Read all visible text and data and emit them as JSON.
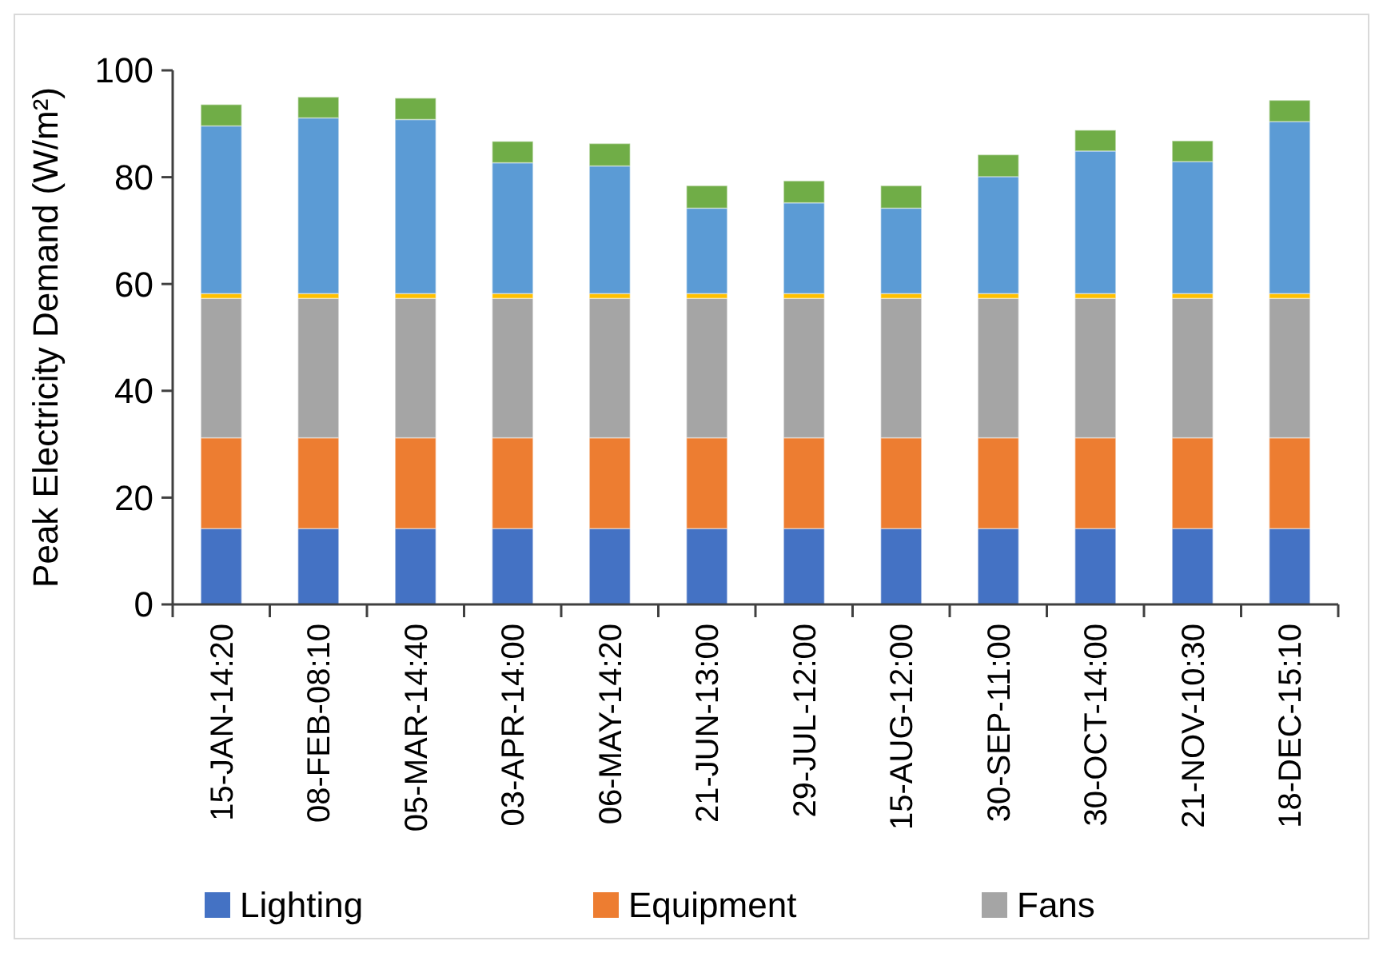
{
  "chart_data": {
    "type": "bar",
    "stacked": true,
    "ylabel": "Peak Electricity Demand (W/m²)",
    "categories": [
      "15-JAN-14:20",
      "08-FEB-08:10",
      "05-MAR-14:40",
      "03-APR-14:00",
      "06-MAY-14:20",
      "21-JUN-13:00",
      "29-JUL-12:00",
      "15-AUG-12:00",
      "30-SEP-11:00",
      "30-OCT-14:00",
      "21-NOV-10:30",
      "18-DEC-15:10"
    ],
    "series": [
      {
        "name": "Lighting",
        "color": "#4472c4",
        "values": [
          14.2,
          14.2,
          14.2,
          14.2,
          14.2,
          14.2,
          14.2,
          14.2,
          14.2,
          14.2,
          14.2,
          14.2
        ]
      },
      {
        "name": "Equipment",
        "color": "#ed7d31",
        "values": [
          17,
          17,
          17,
          17,
          17,
          17,
          17,
          17,
          17,
          17,
          17,
          17
        ]
      },
      {
        "name": "Fans",
        "color": "#a5a5a5",
        "values": [
          26.1,
          26.1,
          26.1,
          26.1,
          26.1,
          26.1,
          26.1,
          26.1,
          26.1,
          26.1,
          26.1,
          26.1
        ]
      },
      {
        "color": "#ffc000",
        "values": [
          0.9,
          0.9,
          0.9,
          0.9,
          0.9,
          0.9,
          0.9,
          0.9,
          0.9,
          0.9,
          0.9,
          0.9
        ]
      },
      {
        "color": "#5b9bd5",
        "values": [
          31.4,
          32.9,
          32.6,
          24.5,
          23.9,
          16,
          17,
          16,
          21.9,
          26.7,
          24.7,
          32.2
        ]
      },
      {
        "color": "#70ad47",
        "values": [
          4,
          3.9,
          4,
          4,
          4.2,
          4.2,
          4.1,
          4.2,
          4.1,
          3.9,
          3.9,
          4
        ]
      }
    ],
    "ylim": [
      0,
      100
    ],
    "yticks": [
      0,
      20,
      40,
      60,
      80,
      100
    ],
    "legend": "bottom"
  }
}
